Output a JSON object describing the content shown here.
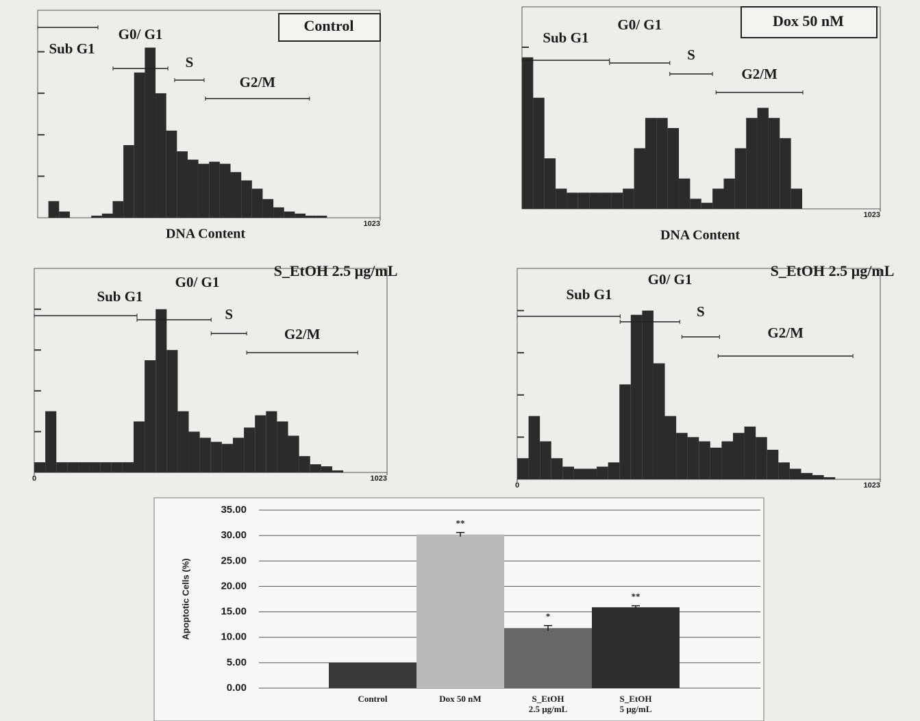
{
  "chart_data": [
    {
      "type": "histogram",
      "title": "Control",
      "title_box": true,
      "xlabel": "DNA Content",
      "color": "#2b2b2b",
      "bins": [
        0,
        32,
        64,
        96,
        128,
        160,
        192,
        224,
        256,
        288,
        320,
        352,
        384,
        416,
        448,
        480,
        512,
        544,
        576,
        608,
        640,
        672,
        704,
        736,
        768,
        800,
        832,
        864,
        896,
        928,
        960,
        992,
        1023
      ],
      "values": [
        0,
        8,
        3,
        0,
        0,
        1,
        2,
        8,
        35,
        70,
        82,
        60,
        42,
        32,
        28,
        26,
        27,
        26,
        22,
        18,
        14,
        9,
        5,
        3,
        2,
        1,
        1,
        0,
        0,
        0,
        0,
        0
      ],
      "xlim": [
        0,
        1023
      ],
      "xticks": [
        1023
      ],
      "ylim": [
        0,
        100
      ],
      "gates": [
        {
          "name": "Sub G1",
          "range": [
            0,
            180
          ]
        },
        {
          "name": "G0/ G1",
          "range": [
            225,
            389
          ]
        },
        {
          "name": "S",
          "range": [
            409,
            497
          ]
        },
        {
          "name": "G2/M",
          "range": [
            501,
            812
          ]
        }
      ]
    },
    {
      "type": "histogram",
      "title": "Dox 50 nM",
      "title_box": true,
      "xlabel": "DNA Content",
      "color": "#2b2b2b",
      "bins": [
        0,
        32,
        64,
        96,
        128,
        160,
        192,
        224,
        256,
        288,
        320,
        352,
        384,
        416,
        448,
        480,
        512,
        544,
        576,
        608,
        640,
        672,
        704,
        736,
        768,
        800,
        832,
        864,
        896,
        928,
        960,
        992,
        1023
      ],
      "values": [
        75,
        55,
        25,
        10,
        8,
        8,
        8,
        8,
        8,
        10,
        30,
        45,
        45,
        40,
        15,
        5,
        3,
        10,
        15,
        30,
        45,
        50,
        45,
        35,
        10,
        0,
        0,
        0,
        0,
        0,
        0,
        0
      ],
      "xlim": [
        0,
        1023
      ],
      "xticks": [
        1023
      ],
      "ylim": [
        0,
        100
      ],
      "gates": [
        {
          "name": "Sub G1",
          "range": [
            0,
            250
          ]
        },
        {
          "name": "G0/ G1",
          "range": [
            250,
            422
          ]
        },
        {
          "name": "S",
          "range": [
            422,
            544
          ]
        },
        {
          "name": "G2/M",
          "range": [
            554,
            802
          ]
        }
      ]
    },
    {
      "type": "histogram",
      "title": "S_EtOH 2.5 µg/mL",
      "title_box": false,
      "color": "#2b2b2b",
      "bins": [
        0,
        32,
        64,
        96,
        128,
        160,
        192,
        224,
        256,
        288,
        320,
        352,
        384,
        416,
        448,
        480,
        512,
        544,
        576,
        608,
        640,
        672,
        704,
        736,
        768,
        800,
        832,
        864,
        896,
        928,
        960,
        992,
        1023
      ],
      "values": [
        5,
        30,
        5,
        5,
        5,
        5,
        5,
        5,
        5,
        25,
        55,
        80,
        60,
        30,
        20,
        17,
        15,
        14,
        17,
        22,
        28,
        30,
        25,
        18,
        8,
        4,
        3,
        1,
        0,
        0,
        0,
        0
      ],
      "xlim": [
        0,
        1023
      ],
      "xticks": [
        0,
        1023
      ],
      "ylim": [
        0,
        100
      ],
      "gates": [
        {
          "name": "Sub G1",
          "range": [
            0,
            298
          ]
        },
        {
          "name": "G0/ G1",
          "range": [
            298,
            513
          ]
        },
        {
          "name": "S",
          "range": [
            513,
            616
          ]
        },
        {
          "name": "G2/M",
          "range": [
            616,
            938
          ]
        }
      ]
    },
    {
      "type": "histogram",
      "title": "S_EtOH 2.5 µg/mL",
      "title_box": false,
      "color": "#2b2b2b",
      "bins": [
        0,
        32,
        64,
        96,
        128,
        160,
        192,
        224,
        256,
        288,
        320,
        352,
        384,
        416,
        448,
        480,
        512,
        544,
        576,
        608,
        640,
        672,
        704,
        736,
        768,
        800,
        832,
        864,
        896,
        928,
        960,
        992,
        1023
      ],
      "values": [
        10,
        30,
        18,
        10,
        6,
        5,
        5,
        6,
        8,
        45,
        78,
        80,
        55,
        30,
        22,
        20,
        18,
        15,
        18,
        22,
        25,
        20,
        14,
        8,
        5,
        3,
        2,
        1,
        0,
        0,
        0,
        0
      ],
      "xlim": [
        0,
        1023
      ],
      "xticks": [
        0,
        1023
      ],
      "ylim": [
        0,
        100
      ],
      "gates": [
        {
          "name": "Sub G1",
          "range": [
            0,
            290
          ]
        },
        {
          "name": "G0/ G1",
          "range": [
            290,
            458
          ]
        },
        {
          "name": "S",
          "range": [
            464,
            570
          ]
        },
        {
          "name": "G2/M",
          "range": [
            566,
            946
          ]
        }
      ]
    },
    {
      "type": "bar",
      "ylabel": "Apoptotic Cells (%)",
      "categories": [
        "Control",
        "Dox 50 nM",
        "S_EtOH 2.5 µg/mL",
        "S_EtOH 5 µg/mL"
      ],
      "values": [
        5.0,
        30.2,
        11.8,
        15.9
      ],
      "errors": [
        null,
        0.4,
        0.5,
        0.3
      ],
      "significance": [
        null,
        "**",
        "*",
        "**"
      ],
      "colors": [
        "#3a3a3a",
        "#b9b9b9",
        "#686868",
        "#2e2e2e"
      ],
      "ylim": [
        0,
        35
      ],
      "yticks": [
        {
          "value": 0,
          "label": "0.00"
        },
        {
          "value": 5,
          "label": "5.00"
        },
        {
          "value": 10,
          "label": "10.00"
        },
        {
          "value": 15,
          "label": "15.00"
        },
        {
          "value": 20,
          "label": "20.00"
        },
        {
          "value": 25,
          "label": "25.00"
        },
        {
          "value": 30,
          "label": "30.00"
        },
        {
          "value": 35,
          "label": "35.00"
        }
      ],
      "grid": true
    }
  ]
}
